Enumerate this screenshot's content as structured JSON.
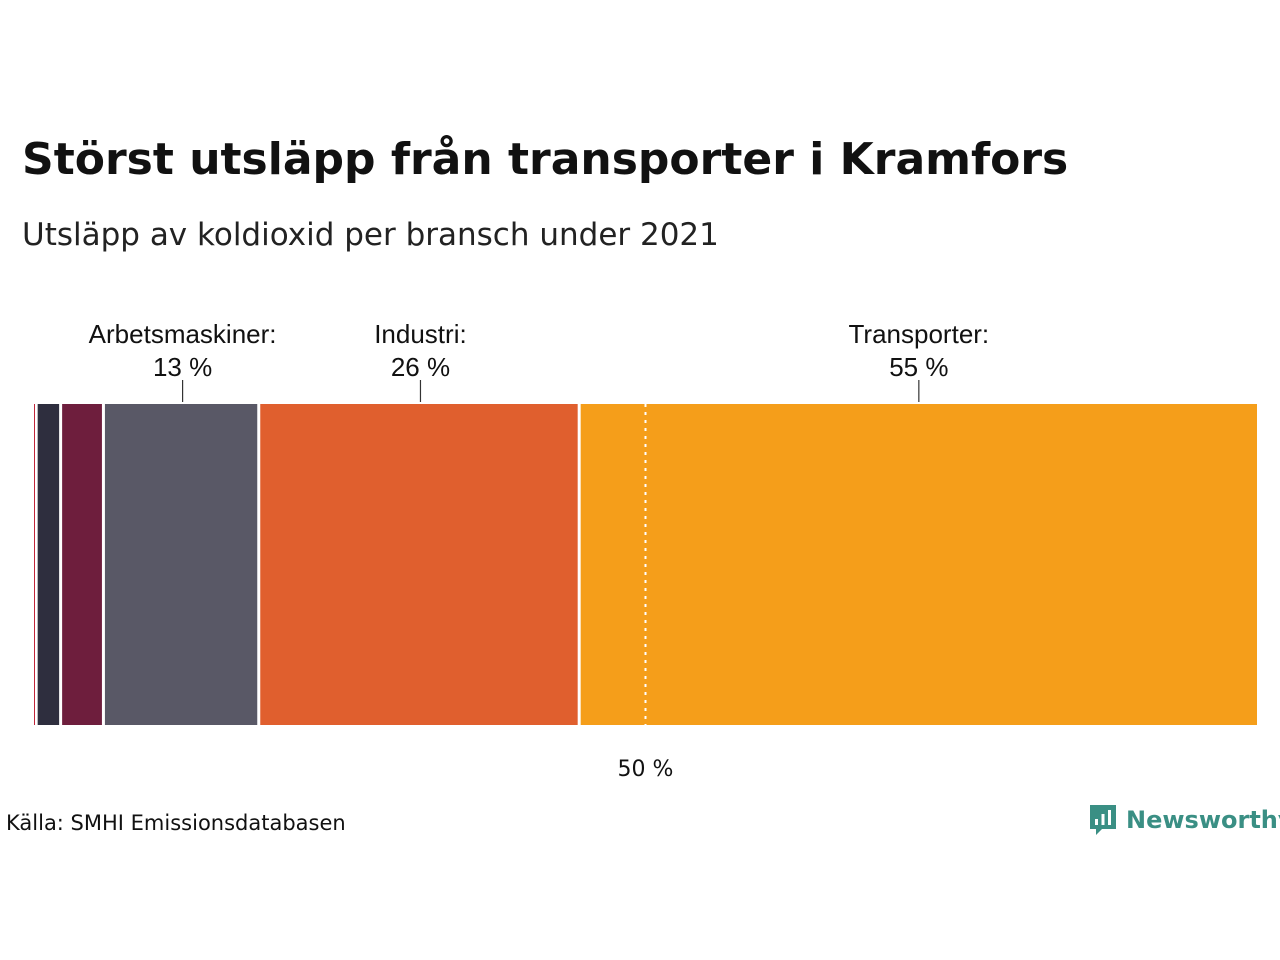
{
  "title": "Störst utsläpp från transporter i Kramfors",
  "subtitle": "Utsläpp av koldioxid per bransch under 2021",
  "source": "Källa: SMHI Emissionsdatabasen",
  "brand": {
    "name": "Newsworthy",
    "icon": "bar-chart-speech-bubble-icon",
    "color": "#3a8f84"
  },
  "chart_data": {
    "type": "bar",
    "orientation": "horizontal-stacked-100",
    "unit": "%",
    "segments": [
      {
        "value": 0.3,
        "color": "#c0263a",
        "label": ""
      },
      {
        "value": 2.0,
        "color": "#2e2e3e",
        "label": ""
      },
      {
        "value": 3.5,
        "color": "#6e1e3d",
        "label": ""
      },
      {
        "value": 12.7,
        "color": "#595866",
        "label": "Arbetsmaskiner:",
        "value_label": "13 %"
      },
      {
        "value": 26.2,
        "color": "#e05f2e",
        "label": "Industri:",
        "value_label": "26 %"
      },
      {
        "value": 55.3,
        "color": "#f59e1a",
        "label": "Transporter:",
        "value_label": "55 %"
      }
    ],
    "reference_line": {
      "value": 50,
      "label": "50 %"
    },
    "xlim": [
      0,
      100
    ],
    "grid": false,
    "legend": "none"
  }
}
